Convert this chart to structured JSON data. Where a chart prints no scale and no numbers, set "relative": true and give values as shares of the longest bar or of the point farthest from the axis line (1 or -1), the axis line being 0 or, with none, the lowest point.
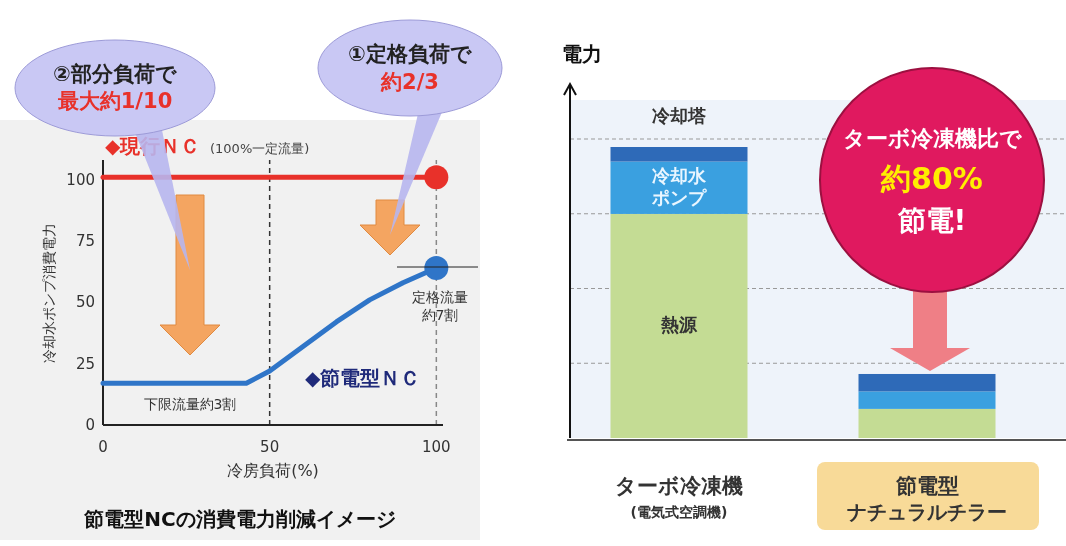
{
  "chart_data": [
    {
      "type": "line",
      "title": "節電型NCの消費電力削減イメージ",
      "xlabel": "冷房負荷(%)",
      "ylabel": "冷却水ポンプ消費電力",
      "xlim": [
        0,
        102
      ],
      "ylim": [
        0,
        108
      ],
      "xticks": [
        0,
        50,
        100
      ],
      "yticks": [
        0,
        25,
        50,
        75,
        100
      ],
      "grid": false,
      "legend": false,
      "series": [
        {
          "name": "◆現行ＮＣ",
          "color": "#e8312a",
          "x": [
            0,
            100
          ],
          "values": [
            101,
            101
          ]
        },
        {
          "name": "◆節電型ＮＣ",
          "color": "#2f75c8",
          "x": [
            0,
            43,
            50,
            60,
            70,
            80,
            90,
            100
          ],
          "values": [
            17,
            17,
            22,
            32,
            42,
            51,
            58,
            64
          ]
        },
        {
          "type": "scatter",
          "color": "#e8312a",
          "x": [
            100
          ],
          "values": [
            101
          ]
        },
        {
          "type": "scatter",
          "color": "#2f75c8",
          "x": [
            100
          ],
          "values": [
            64
          ]
        }
      ],
      "ref_lines": [
        {
          "axis": "x",
          "value": 50,
          "color": "#333333",
          "line_style": "dashed"
        },
        {
          "axis": "x",
          "value": 100,
          "color": "#888888",
          "line_style": "dashed"
        }
      ],
      "annotations": [
        "(100%一定流量)",
        "②部分負荷で",
        "最大約1/10",
        "①定格負荷で",
        "約2/3",
        "下限流量約3割",
        "定格流量",
        "約7割"
      ]
    },
    {
      "type": "bar",
      "stacked": true,
      "relative": true,
      "ylabel": "電力",
      "grid": "y",
      "legend": false,
      "categories": [
        "ターボ冷凍機",
        "節電型"
      ],
      "series": [
        {
          "name": "熱源",
          "color": "#c4dc94",
          "values": [
            0.77,
            0.1
          ]
        },
        {
          "name": "冷却水ポンプ",
          "color": "#3aa0e0",
          "values": [
            0.18,
            0.06
          ]
        },
        {
          "name": "冷却塔",
          "color": "#2e6ab8",
          "values": [
            0.05,
            0.06
          ]
        }
      ],
      "annotations": [
        "(電気式空調機)",
        "ナチュラルチラー",
        "ターボ冷凍機比で",
        "約80%",
        "節電!"
      ]
    }
  ]
}
